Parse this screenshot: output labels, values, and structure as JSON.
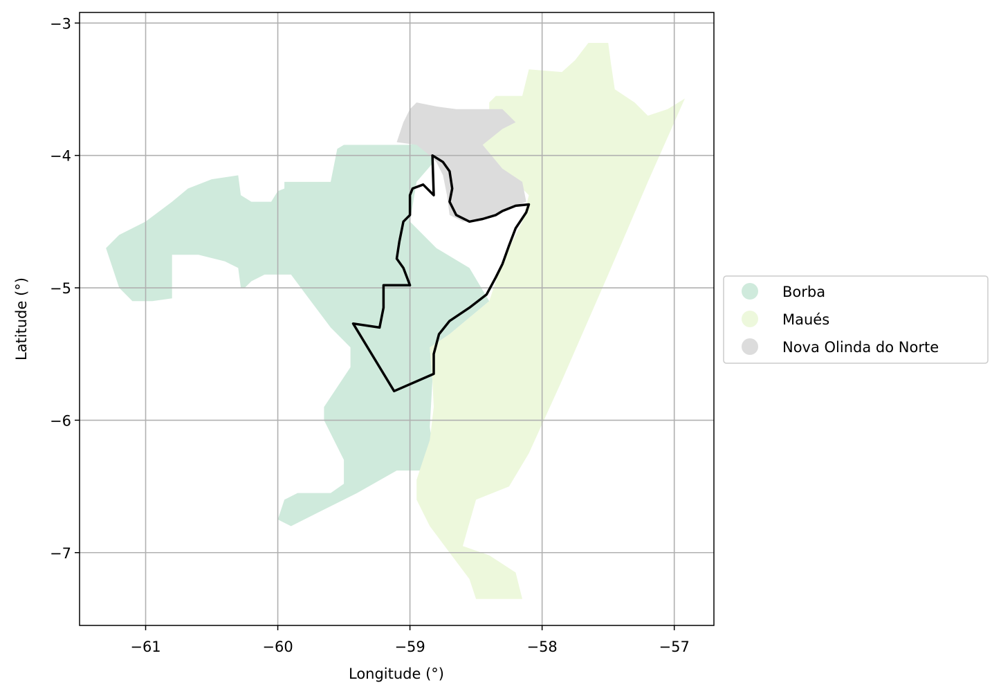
{
  "chart_data": {
    "type": "map",
    "xlabel": "Longitude (°)",
    "ylabel": "Latitude (°)",
    "xlim": [
      -61.5,
      -56.7
    ],
    "ylim": [
      -7.55,
      -2.92
    ],
    "xticks": [
      -61,
      -60,
      -59,
      -58,
      -57
    ],
    "yticks": [
      -3,
      -4,
      -5,
      -6,
      -7
    ],
    "xtick_labels": [
      "−61",
      "−60",
      "−59",
      "−58",
      "−57"
    ],
    "ytick_labels": [
      "−3",
      "−4",
      "−5",
      "−6",
      "−7"
    ],
    "grid": true,
    "legend_position": "right",
    "regions": [
      {
        "name": "Borba",
        "color": "#cfeadc",
        "coords": [
          [
            -61.3,
            -4.7
          ],
          [
            -61.2,
            -4.6
          ],
          [
            -61.0,
            -4.5
          ],
          [
            -60.8,
            -4.35
          ],
          [
            -60.68,
            -4.25
          ],
          [
            -60.5,
            -4.18
          ],
          [
            -60.3,
            -4.15
          ],
          [
            -60.28,
            -4.3
          ],
          [
            -60.2,
            -4.35
          ],
          [
            -60.05,
            -4.35
          ],
          [
            -60.0,
            -4.27
          ],
          [
            -59.95,
            -4.25
          ],
          [
            -59.95,
            -4.2
          ],
          [
            -59.6,
            -4.2
          ],
          [
            -59.55,
            -3.95
          ],
          [
            -59.5,
            -3.92
          ],
          [
            -59.0,
            -3.92
          ],
          [
            -58.95,
            -3.9
          ],
          [
            -58.85,
            -4.0
          ],
          [
            -58.82,
            -4.05
          ],
          [
            -58.95,
            -4.2
          ],
          [
            -59.0,
            -4.5
          ],
          [
            -58.8,
            -4.7
          ],
          [
            -58.55,
            -4.85
          ],
          [
            -58.4,
            -5.1
          ],
          [
            -58.7,
            -5.35
          ],
          [
            -58.85,
            -5.45
          ],
          [
            -58.83,
            -5.7
          ],
          [
            -58.85,
            -6.05
          ],
          [
            -58.83,
            -6.2
          ],
          [
            -58.9,
            -6.38
          ],
          [
            -59.1,
            -6.38
          ],
          [
            -59.4,
            -6.55
          ],
          [
            -59.7,
            -6.7
          ],
          [
            -59.9,
            -6.8
          ],
          [
            -60.0,
            -6.75
          ],
          [
            -59.95,
            -6.6
          ],
          [
            -59.85,
            -6.55
          ],
          [
            -59.6,
            -6.55
          ],
          [
            -59.5,
            -6.48
          ],
          [
            -59.5,
            -6.3
          ],
          [
            -59.65,
            -6.0
          ],
          [
            -59.65,
            -5.9
          ],
          [
            -59.45,
            -5.6
          ],
          [
            -59.45,
            -5.45
          ],
          [
            -59.6,
            -5.3
          ],
          [
            -59.75,
            -5.1
          ],
          [
            -59.9,
            -4.9
          ],
          [
            -60.1,
            -4.9
          ],
          [
            -60.2,
            -4.95
          ],
          [
            -60.25,
            -5.0
          ],
          [
            -60.28,
            -5.0
          ],
          [
            -60.3,
            -4.85
          ],
          [
            -60.4,
            -4.8
          ],
          [
            -60.6,
            -4.75
          ],
          [
            -60.8,
            -4.75
          ],
          [
            -60.8,
            -5.08
          ],
          [
            -60.95,
            -5.1
          ],
          [
            -61.1,
            -5.1
          ],
          [
            -61.2,
            -5.0
          ],
          [
            -61.3,
            -4.7
          ]
        ]
      },
      {
        "name": "Maués",
        "color": "#edf8dc",
        "coords": [
          [
            -58.35,
            -3.55
          ],
          [
            -58.15,
            -3.55
          ],
          [
            -58.1,
            -3.35
          ],
          [
            -57.85,
            -3.37
          ],
          [
            -57.75,
            -3.28
          ],
          [
            -57.65,
            -3.15
          ],
          [
            -57.5,
            -3.15
          ],
          [
            -57.48,
            -3.3
          ],
          [
            -57.45,
            -3.5
          ],
          [
            -57.3,
            -3.6
          ],
          [
            -57.2,
            -3.7
          ],
          [
            -57.05,
            -3.65
          ],
          [
            -56.92,
            -3.57
          ],
          [
            -57.2,
            -4.2
          ],
          [
            -57.5,
            -4.9
          ],
          [
            -57.85,
            -5.7
          ],
          [
            -58.1,
            -6.25
          ],
          [
            -58.25,
            -6.5
          ],
          [
            -58.5,
            -6.6
          ],
          [
            -58.6,
            -6.95
          ],
          [
            -58.4,
            -7.02
          ],
          [
            -58.2,
            -7.15
          ],
          [
            -58.15,
            -7.35
          ],
          [
            -58.5,
            -7.35
          ],
          [
            -58.55,
            -7.2
          ],
          [
            -58.7,
            -7.0
          ],
          [
            -58.85,
            -6.8
          ],
          [
            -58.95,
            -6.6
          ],
          [
            -58.95,
            -6.45
          ],
          [
            -58.9,
            -6.3
          ],
          [
            -58.85,
            -6.15
          ],
          [
            -58.82,
            -5.9
          ],
          [
            -58.83,
            -5.7
          ],
          [
            -58.85,
            -5.45
          ],
          [
            -58.7,
            -5.35
          ],
          [
            -58.4,
            -5.1
          ],
          [
            -58.3,
            -4.8
          ],
          [
            -58.15,
            -4.5
          ],
          [
            -58.1,
            -4.3
          ],
          [
            -58.2,
            -4.2
          ],
          [
            -58.3,
            -4.1
          ],
          [
            -58.45,
            -3.92
          ],
          [
            -58.4,
            -3.8
          ],
          [
            -58.4,
            -3.6
          ],
          [
            -58.35,
            -3.55
          ]
        ]
      },
      {
        "name": "Nova Olinda do Norte",
        "color": "#dcdcdc",
        "coords": [
          [
            -59.1,
            -3.9
          ],
          [
            -59.05,
            -3.75
          ],
          [
            -59.0,
            -3.65
          ],
          [
            -58.95,
            -3.6
          ],
          [
            -58.8,
            -3.63
          ],
          [
            -58.65,
            -3.65
          ],
          [
            -58.5,
            -3.65
          ],
          [
            -58.3,
            -3.65
          ],
          [
            -58.2,
            -3.75
          ],
          [
            -58.3,
            -3.8
          ],
          [
            -58.45,
            -3.92
          ],
          [
            -58.3,
            -4.1
          ],
          [
            -58.15,
            -4.2
          ],
          [
            -58.12,
            -4.35
          ],
          [
            -58.25,
            -4.4
          ],
          [
            -58.45,
            -4.48
          ],
          [
            -58.6,
            -4.5
          ],
          [
            -58.7,
            -4.45
          ],
          [
            -58.72,
            -4.3
          ],
          [
            -58.75,
            -4.15
          ],
          [
            -58.8,
            -4.05
          ],
          [
            -58.85,
            -4.0
          ],
          [
            -58.95,
            -3.92
          ],
          [
            -59.1,
            -3.9
          ]
        ]
      }
    ],
    "outline": [
      [
        -58.83,
        -4.0
      ],
      [
        -58.75,
        -4.05
      ],
      [
        -58.7,
        -4.12
      ],
      [
        -58.68,
        -4.25
      ],
      [
        -58.7,
        -4.35
      ],
      [
        -58.65,
        -4.45
      ],
      [
        -58.55,
        -4.5
      ],
      [
        -58.45,
        -4.48
      ],
      [
        -58.35,
        -4.45
      ],
      [
        -58.3,
        -4.42
      ],
      [
        -58.2,
        -4.38
      ],
      [
        -58.1,
        -4.37
      ],
      [
        -58.12,
        -4.43
      ],
      [
        -58.2,
        -4.55
      ],
      [
        -58.25,
        -4.68
      ],
      [
        -58.3,
        -4.82
      ],
      [
        -58.35,
        -4.92
      ],
      [
        -58.42,
        -5.05
      ],
      [
        -58.55,
        -5.15
      ],
      [
        -58.7,
        -5.25
      ],
      [
        -58.78,
        -5.35
      ],
      [
        -58.82,
        -5.5
      ],
      [
        -58.82,
        -5.65
      ],
      [
        -59.12,
        -5.78
      ],
      [
        -59.43,
        -5.27
      ],
      [
        -59.23,
        -5.3
      ],
      [
        -59.2,
        -5.15
      ],
      [
        -59.2,
        -4.98
      ],
      [
        -59.0,
        -4.98
      ],
      [
        -59.05,
        -4.85
      ],
      [
        -59.1,
        -4.78
      ],
      [
        -59.08,
        -4.65
      ],
      [
        -59.05,
        -4.5
      ],
      [
        -59.0,
        -4.45
      ],
      [
        -59.0,
        -4.3
      ],
      [
        -58.98,
        -4.25
      ],
      [
        -58.9,
        -4.22
      ],
      [
        -58.82,
        -4.3
      ],
      [
        -58.83,
        -4.0
      ]
    ]
  }
}
